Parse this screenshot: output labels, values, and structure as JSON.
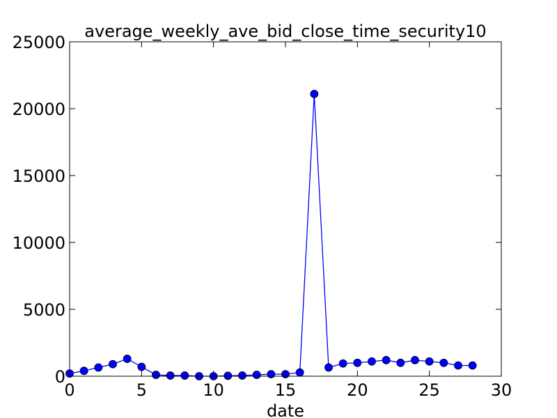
{
  "chart_data": {
    "type": "line",
    "title": "average_weekly_ave_bid_close_time_security10",
    "xlabel": "date",
    "ylabel": "",
    "xlim": [
      0,
      30
    ],
    "ylim": [
      0,
      25000
    ],
    "xticks": [
      0,
      5,
      10,
      15,
      20,
      25,
      30
    ],
    "yticks": [
      0,
      5000,
      10000,
      15000,
      20000,
      25000
    ],
    "grid": false,
    "legend": "none",
    "series": [
      {
        "color": "#0000ff",
        "marker": "circle",
        "x": [
          0,
          1,
          2,
          3,
          4,
          5,
          6,
          7,
          8,
          9,
          10,
          11,
          12,
          13,
          14,
          15,
          16,
          17,
          18,
          19,
          20,
          21,
          22,
          23,
          24,
          25,
          26,
          27,
          28
        ],
        "y": [
          200,
          400,
          650,
          900,
          1300,
          700,
          100,
          50,
          50,
          0,
          0,
          30,
          50,
          100,
          150,
          150,
          280,
          21100,
          650,
          950,
          1000,
          1100,
          1200,
          1000,
          1200,
          1100,
          1000,
          800,
          800
        ]
      }
    ]
  }
}
